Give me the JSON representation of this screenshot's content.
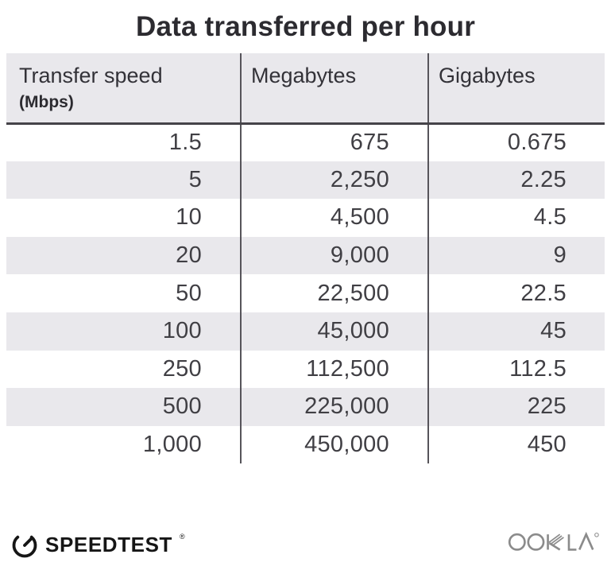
{
  "title": "Data transferred per hour",
  "table": {
    "columns": [
      {
        "label": "Transfer speed",
        "sublabel": "(Mbps)"
      },
      {
        "label": "Megabytes",
        "sublabel": ""
      },
      {
        "label": "Gigabytes",
        "sublabel": ""
      }
    ],
    "rows": [
      [
        "1.5",
        "675",
        "0.675"
      ],
      [
        "5",
        "2,250",
        "2.25"
      ],
      [
        "10",
        "4,500",
        "4.5"
      ],
      [
        "20",
        "9,000",
        "9"
      ],
      [
        "50",
        "22,500",
        "22.5"
      ],
      [
        "100",
        "45,000",
        "45"
      ],
      [
        "250",
        "112,500",
        "112.5"
      ],
      [
        "500",
        "225,000",
        "225"
      ],
      [
        "1,000",
        "450,000",
        "450"
      ]
    ]
  },
  "chart_data": {
    "type": "table",
    "title": "Data transferred per hour",
    "columns": [
      "Transfer speed (Mbps)",
      "Megabytes",
      "Gigabytes"
    ],
    "rows": [
      [
        1.5,
        675,
        0.675
      ],
      [
        5,
        2250,
        2.25
      ],
      [
        10,
        4500,
        4.5
      ],
      [
        20,
        9000,
        9
      ],
      [
        50,
        22500,
        22.5
      ],
      [
        100,
        45000,
        45
      ],
      [
        250,
        112500,
        112.5
      ],
      [
        500,
        225000,
        225
      ],
      [
        1000,
        450000,
        450
      ]
    ]
  },
  "footer": {
    "brand": "SPEEDTEST",
    "brand_registered_mark": "®",
    "attribution": "OOKLA",
    "attribution_registered_mark": "®"
  },
  "icons": {
    "gauge": "speedtest-gauge-icon",
    "ookla_wordmark": "ookla-logo"
  },
  "colors": {
    "stripe": "#e9e8ec",
    "header_bg": "#e9e8ec",
    "divider": "#56545a",
    "header_rule": "#454349",
    "title_text": "#2c2b30",
    "data_text": "#403f44",
    "brand_black": "#161616",
    "ookla_gray": "#8b8b8b"
  }
}
